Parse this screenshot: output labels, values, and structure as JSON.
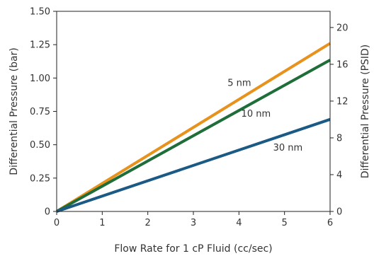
{
  "chart_data": {
    "type": "line",
    "xlabel": "Flow Rate for 1 cP Fluid (cc/sec)",
    "ylabel": "Differential Pressure (bar)",
    "y2label": "Differential Pressure (PSID)",
    "xlim": [
      0,
      6
    ],
    "ylim": [
      0,
      1.5
    ],
    "y2lim": [
      0,
      21.76
    ],
    "x_ticks": [
      0,
      1,
      2,
      3,
      4,
      5,
      6
    ],
    "x_tick_labels": [
      "0",
      "1",
      "2",
      "3",
      "4",
      "5",
      "6"
    ],
    "y_ticks": [
      0,
      0.25,
      0.5,
      0.75,
      1.0,
      1.25,
      1.5
    ],
    "y_tick_labels": [
      "0",
      "0.25",
      "0.50",
      "0.75",
      "1.00",
      "1.25",
      "1.50"
    ],
    "y2_ticks": [
      0,
      4,
      8,
      12,
      16,
      20
    ],
    "y2_tick_labels": [
      "0",
      "4",
      "8",
      "12",
      "16",
      "20"
    ],
    "grid": false,
    "legend": "inline labels",
    "series": [
      {
        "name": "5 nm",
        "color": "#E8921E",
        "x": [
          0,
          6
        ],
        "y": [
          0,
          1.26
        ]
      },
      {
        "name": "10 nm",
        "color": "#1F6E3A",
        "x": [
          0,
          6
        ],
        "y": [
          0,
          1.135
        ]
      },
      {
        "name": "30 nm",
        "color": "#1C5A86",
        "x": [
          0,
          6
        ],
        "y": [
          0,
          0.69
        ]
      }
    ]
  }
}
